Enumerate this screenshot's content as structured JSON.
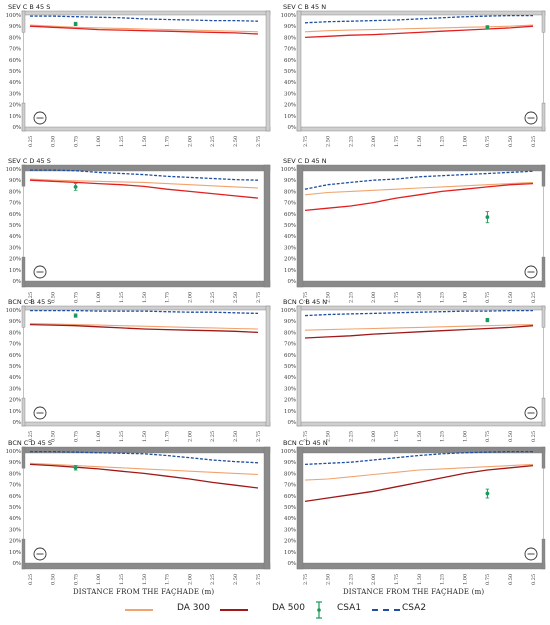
{
  "colors": {
    "da300": "#f2a36e",
    "da500": "#e02020",
    "csa1": "#1a9a5a",
    "csa2": "#1f4fa0",
    "frame": "#888888"
  },
  "x_axis_title": "DISTANCE FROM THE FAÇHADE (m)",
  "y_ticks": [
    "0%",
    "10%",
    "20%",
    "30%",
    "40%",
    "50%",
    "60%",
    "70%",
    "80%",
    "90%",
    "100%"
  ],
  "legend": [
    {
      "key": "da300",
      "label": "DA 300"
    },
    {
      "key": "da500",
      "label": "DA 500"
    },
    {
      "key": "csa1",
      "label": "CSA1"
    },
    {
      "key": "csa2",
      "label": "CSA2"
    }
  ],
  "chart_data": [
    {
      "type": "line",
      "title": "SEV C B 45 S",
      "facade": "left",
      "x": [
        0.25,
        0.5,
        0.75,
        1.0,
        1.25,
        1.5,
        1.75,
        2.0,
        2.25,
        2.5,
        2.75
      ],
      "xlabels": [
        "0.25",
        "0.50",
        "0.75",
        "1.00",
        "1.25",
        "1.50",
        "1.75",
        "2.00",
        "2.25",
        "2.50",
        "2.75"
      ],
      "ylim": [
        0,
        100
      ],
      "series": [
        {
          "name": "DA 300",
          "values": [
            91,
            90,
            89,
            88.5,
            88,
            87.5,
            87,
            86.5,
            86,
            85.5,
            85
          ]
        },
        {
          "name": "DA 500",
          "values": [
            90,
            89,
            88,
            87,
            86.5,
            86,
            85.5,
            85,
            84.5,
            84,
            83
          ]
        },
        {
          "name": "CSA2",
          "values": [
            99,
            99,
            98.5,
            98,
            97.5,
            96.5,
            96,
            95.5,
            95,
            95,
            94.5
          ]
        }
      ],
      "csa1": {
        "x": 0.75,
        "value": 92,
        "err": 1.5
      }
    },
    {
      "type": "line",
      "title": "SEV C B 45 N",
      "facade": "right",
      "x": [
        2.75,
        2.5,
        2.25,
        2.0,
        1.75,
        1.5,
        1.25,
        1.0,
        0.75,
        0.5,
        0.25
      ],
      "xlabels": [
        "2.75",
        "2.50",
        "2.25",
        "2.00",
        "1.75",
        "1.50",
        "1.25",
        "1.00",
        "0.75",
        "0.50",
        "0.25"
      ],
      "ylim": [
        0,
        100
      ],
      "series": [
        {
          "name": "DA 300",
          "values": [
            85,
            86,
            86.5,
            87,
            87.5,
            88,
            88.5,
            89,
            89.5,
            90,
            91
          ]
        },
        {
          "name": "DA 500",
          "values": [
            80,
            81,
            82,
            82.5,
            83.5,
            84.5,
            85.5,
            86.5,
            87.5,
            88.5,
            90
          ]
        },
        {
          "name": "CSA2",
          "values": [
            93,
            94,
            94.5,
            95,
            95.5,
            96.5,
            97.5,
            98.5,
            99,
            99.5,
            99.5
          ]
        }
      ],
      "csa1": {
        "x": 0.75,
        "value": 89,
        "err": 1.5
      }
    },
    {
      "type": "line",
      "title": "SEV C D 45 S",
      "facade": "left",
      "x": [
        0.25,
        0.5,
        0.75,
        1.0,
        1.25,
        1.5,
        1.75,
        2.0,
        2.25,
        2.5,
        2.75
      ],
      "xlabels": [
        "0.25",
        "0.50",
        "0.75",
        "1.00",
        "1.25",
        "1.50",
        "1.75",
        "2.00",
        "2.25",
        "2.50",
        "2.75"
      ],
      "ylim": [
        0,
        100
      ],
      "series": [
        {
          "name": "DA 300",
          "values": [
            91,
            90,
            89.5,
            89,
            88.5,
            88,
            87,
            86,
            85,
            84,
            83
          ]
        },
        {
          "name": "DA 500",
          "values": [
            90,
            89,
            88,
            87,
            86,
            84.5,
            82,
            80,
            78,
            76,
            74
          ]
        },
        {
          "name": "CSA2",
          "values": [
            99,
            99,
            98.5,
            97,
            96,
            95,
            93.5,
            92.5,
            91.5,
            90.5,
            90
          ]
        }
      ],
      "csa1": {
        "x": 0.75,
        "value": 84,
        "err": 3
      }
    },
    {
      "type": "line",
      "title": "SEV C D 45 N",
      "facade": "right",
      "x": [
        2.75,
        2.5,
        2.25,
        2.0,
        1.75,
        1.5,
        1.25,
        1.0,
        0.75,
        0.5,
        0.25
      ],
      "xlabels": [
        "2.75",
        "2.50",
        "2.25",
        "2.00",
        "1.75",
        "1.50",
        "1.25",
        "1.00",
        "0.75",
        "0.50",
        "0.25"
      ],
      "ylim": [
        0,
        100
      ],
      "series": [
        {
          "name": "DA 300",
          "values": [
            77,
            79,
            80,
            81,
            82,
            83,
            84,
            85,
            86,
            87,
            88
          ]
        },
        {
          "name": "DA 500",
          "values": [
            63,
            65,
            67,
            70,
            74,
            77,
            80,
            82,
            84,
            86,
            87
          ]
        },
        {
          "name": "CSA2",
          "values": [
            82,
            86,
            88,
            90,
            91,
            93,
            94,
            95,
            96,
            97,
            98
          ]
        }
      ],
      "csa1": {
        "x": 0.75,
        "value": 57,
        "err": 5
      }
    },
    {
      "type": "line",
      "title": "BCN C B 45 S",
      "facade": "left",
      "x": [
        0.25,
        0.5,
        0.75,
        1.0,
        1.25,
        1.5,
        1.75,
        2.0,
        2.25,
        2.5,
        2.75
      ],
      "xlabels": [
        "0.25",
        "0.50",
        "0.75",
        "1.00",
        "1.25",
        "1.50",
        "1.75",
        "2.00",
        "2.25",
        "2.50",
        "2.75"
      ],
      "ylim": [
        0,
        100
      ],
      "series": [
        {
          "name": "DA 300",
          "values": [
            88,
            87.5,
            87,
            86.5,
            86,
            85.5,
            85,
            84.5,
            84,
            83.5,
            83
          ]
        },
        {
          "name": "DA 500",
          "values": [
            87,
            86.5,
            86,
            85,
            84,
            83,
            82.5,
            82,
            81.5,
            81,
            80
          ]
        },
        {
          "name": "CSA2",
          "values": [
            99.5,
            99.5,
            99.5,
            99,
            99,
            99,
            98.5,
            98,
            98,
            97.5,
            97
          ]
        }
      ],
      "csa1": {
        "x": 0.75,
        "value": 95,
        "err": 1.5
      }
    },
    {
      "type": "line",
      "title": "BCN C B 45 N",
      "facade": "right",
      "x": [
        2.75,
        2.5,
        2.25,
        2.0,
        1.75,
        1.5,
        1.25,
        1.0,
        0.75,
        0.5,
        0.25
      ],
      "xlabels": [
        "2.75",
        "2.50",
        "2.25",
        "2.00",
        "1.75",
        "1.50",
        "1.25",
        "1.00",
        "0.75",
        "0.50",
        "0.25"
      ],
      "ylim": [
        0,
        100
      ],
      "series": [
        {
          "name": "DA 300",
          "values": [
            82,
            82.5,
            83,
            83.5,
            84,
            84.5,
            85,
            85.5,
            86,
            86.5,
            87
          ]
        },
        {
          "name": "DA 500",
          "values": [
            75,
            76,
            77,
            78.5,
            79.5,
            80.5,
            81.5,
            82.5,
            83.5,
            84.5,
            86
          ]
        },
        {
          "name": "CSA2",
          "values": [
            95,
            96,
            96.5,
            97,
            97.5,
            98,
            98.5,
            99,
            99,
            99.5,
            99.5
          ]
        }
      ],
      "csa1": {
        "x": 0.75,
        "value": 91,
        "err": 1.5
      }
    },
    {
      "type": "line",
      "title": "BCN C D 45 S",
      "facade": "left",
      "x": [
        0.25,
        0.5,
        0.75,
        1.0,
        1.25,
        1.5,
        1.75,
        2.0,
        2.25,
        2.5,
        2.75
      ],
      "xlabels": [
        "0.25",
        "0.50",
        "0.75",
        "1.00",
        "1.25",
        "1.50",
        "1.75",
        "2.00",
        "2.25",
        "2.50",
        "2.75"
      ],
      "ylim": [
        0,
        100
      ],
      "series": [
        {
          "name": "DA 300",
          "values": [
            89,
            88,
            87,
            86,
            85,
            84,
            83,
            82,
            81,
            80,
            79
          ]
        },
        {
          "name": "DA 500",
          "values": [
            88,
            87,
            85.5,
            84,
            82,
            80,
            77.5,
            75,
            72,
            69.5,
            67
          ]
        },
        {
          "name": "CSA2",
          "values": [
            99.5,
            99.5,
            99,
            98.5,
            98,
            97.5,
            96,
            94,
            92,
            90.5,
            89.5
          ]
        }
      ],
      "csa1": {
        "x": 0.75,
        "value": 85,
        "err": 2
      }
    },
    {
      "type": "line",
      "title": "BCN C D 45 N",
      "facade": "right",
      "x": [
        2.75,
        2.5,
        2.25,
        2.0,
        1.75,
        1.5,
        1.25,
        1.0,
        0.75,
        0.5,
        0.25
      ],
      "xlabels": [
        "2.75",
        "2.50",
        "2.25",
        "2.00",
        "1.75",
        "1.50",
        "1.25",
        "1.00",
        "0.75",
        "0.50",
        "0.25"
      ],
      "ylim": [
        0,
        100
      ],
      "series": [
        {
          "name": "DA 300",
          "values": [
            74,
            75,
            77,
            79,
            81,
            83,
            84,
            85,
            86,
            87,
            88
          ]
        },
        {
          "name": "DA 500",
          "values": [
            55,
            58,
            61,
            64,
            68,
            72,
            76,
            80,
            83,
            85,
            87
          ]
        },
        {
          "name": "CSA2",
          "values": [
            88,
            89,
            90,
            92,
            94,
            96,
            97.5,
            98.5,
            99,
            99.5,
            99.5
          ]
        }
      ],
      "csa1": {
        "x": 0.75,
        "value": 62,
        "err": 4
      }
    }
  ]
}
